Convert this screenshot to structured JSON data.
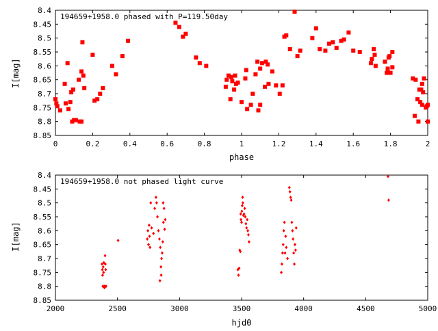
{
  "chart_data": [
    {
      "type": "scatter",
      "title": "194659+1958.0 phased with P=119.50day",
      "xlabel": "phase",
      "ylabel": "I[mag]",
      "xlim": [
        0,
        2
      ],
      "ylim": [
        8.4,
        8.85
      ],
      "y_inverted": true,
      "grid": false,
      "marker_color": "#ff0000",
      "marker": "filled-square",
      "x_ticks": [
        {
          "value": 0,
          "label": "0"
        },
        {
          "value": 0.2,
          "label": "0.2"
        },
        {
          "value": 0.4,
          "label": "0.4"
        },
        {
          "value": 0.6,
          "label": "0.6"
        },
        {
          "value": 0.8,
          "label": "0.8"
        },
        {
          "value": 1.0,
          "label": "1"
        },
        {
          "value": 1.2,
          "label": "1.2"
        },
        {
          "value": 1.4,
          "label": "1.4"
        },
        {
          "value": 1.6,
          "label": "1.6"
        },
        {
          "value": 1.8,
          "label": "1.8"
        },
        {
          "value": 2.0,
          "label": "2"
        }
      ],
      "y_ticks": [
        {
          "value": 8.4,
          "label": "8.4"
        },
        {
          "value": 8.45,
          "label": "8.45"
        },
        {
          "value": 8.5,
          "label": "8.5"
        },
        {
          "value": 8.55,
          "label": "8.55"
        },
        {
          "value": 8.6,
          "label": "8.6"
        },
        {
          "value": 8.65,
          "label": "8.65"
        },
        {
          "value": 8.7,
          "label": "8.7"
        },
        {
          "value": 8.75,
          "label": "8.75"
        },
        {
          "value": 8.8,
          "label": "8.8"
        },
        {
          "value": 8.85,
          "label": "8.85"
        }
      ],
      "points": [
        [
          0.0,
          8.72
        ],
        [
          0.005,
          8.735
        ],
        [
          0.01,
          8.745
        ],
        [
          0.025,
          8.76
        ],
        [
          0.05,
          8.665
        ],
        [
          0.055,
          8.735
        ],
        [
          0.065,
          8.59
        ],
        [
          0.07,
          8.755
        ],
        [
          0.08,
          8.73
        ],
        [
          0.085,
          8.695
        ],
        [
          0.09,
          8.8
        ],
        [
          0.095,
          8.685
        ],
        [
          0.1,
          8.795
        ],
        [
          0.11,
          8.795
        ],
        [
          0.125,
          8.65
        ],
        [
          0.13,
          8.8
        ],
        [
          0.14,
          8.8
        ],
        [
          0.14,
          8.62
        ],
        [
          0.145,
          8.515
        ],
        [
          0.15,
          8.635
        ],
        [
          0.155,
          8.68
        ],
        [
          0.2,
          8.56
        ],
        [
          0.21,
          8.725
        ],
        [
          0.225,
          8.72
        ],
        [
          0.24,
          8.7
        ],
        [
          0.255,
          8.68
        ],
        [
          0.305,
          8.6
        ],
        [
          0.325,
          8.63
        ],
        [
          0.36,
          8.565
        ],
        [
          0.39,
          8.51
        ],
        [
          0.645,
          8.445
        ],
        [
          0.665,
          8.46
        ],
        [
          0.685,
          8.495
        ],
        [
          0.7,
          8.485
        ],
        [
          0.755,
          8.57
        ],
        [
          0.775,
          8.59
        ],
        [
          0.81,
          8.6
        ],
        [
          0.915,
          8.675
        ],
        [
          0.92,
          8.65
        ],
        [
          0.93,
          8.635
        ],
        [
          0.94,
          8.72
        ],
        [
          0.945,
          8.64
        ],
        [
          0.95,
          8.655
        ],
        [
          0.96,
          8.685
        ],
        [
          0.965,
          8.635
        ],
        [
          0.97,
          8.665
        ],
        [
          0.98,
          8.66
        ],
        [
          1.0,
          8.73
        ],
        [
          1.02,
          8.645
        ],
        [
          1.025,
          8.615
        ],
        [
          1.03,
          8.755
        ],
        [
          1.05,
          8.74
        ],
        [
          1.06,
          8.7
        ],
        [
          1.075,
          8.63
        ],
        [
          1.085,
          8.585
        ],
        [
          1.09,
          8.76
        ],
        [
          1.1,
          8.74
        ],
        [
          1.1,
          8.61
        ],
        [
          1.11,
          8.59
        ],
        [
          1.125,
          8.675
        ],
        [
          1.13,
          8.585
        ],
        [
          1.14,
          8.595
        ],
        [
          1.145,
          8.665
        ],
        [
          1.165,
          8.62
        ],
        [
          1.185,
          8.67
        ],
        [
          1.205,
          8.7
        ],
        [
          1.22,
          8.67
        ],
        [
          1.23,
          8.495
        ],
        [
          1.24,
          8.49
        ],
        [
          1.26,
          8.54
        ],
        [
          1.285,
          8.405
        ],
        [
          1.3,
          8.565
        ],
        [
          1.315,
          8.545
        ],
        [
          1.38,
          8.5
        ],
        [
          1.4,
          8.465
        ],
        [
          1.42,
          8.54
        ],
        [
          1.45,
          8.545
        ],
        [
          1.47,
          8.52
        ],
        [
          1.49,
          8.515
        ],
        [
          1.51,
          8.535
        ],
        [
          1.535,
          8.51
        ],
        [
          1.55,
          8.505
        ],
        [
          1.575,
          8.48
        ],
        [
          1.6,
          8.545
        ],
        [
          1.635,
          8.55
        ],
        [
          1.695,
          8.59
        ],
        [
          1.7,
          8.575
        ],
        [
          1.71,
          8.54
        ],
        [
          1.715,
          8.56
        ],
        [
          1.72,
          8.6
        ],
        [
          1.77,
          8.585
        ],
        [
          1.78,
          8.625
        ],
        [
          1.785,
          8.61
        ],
        [
          1.79,
          8.57
        ],
        [
          1.795,
          8.565
        ],
        [
          1.8,
          8.625
        ],
        [
          1.81,
          8.605
        ],
        [
          1.81,
          8.55
        ],
        [
          1.92,
          8.645
        ],
        [
          1.93,
          8.78
        ],
        [
          1.935,
          8.65
        ],
        [
          1.945,
          8.72
        ],
        [
          1.95,
          8.8
        ],
        [
          1.955,
          8.685
        ],
        [
          1.96,
          8.73
        ],
        [
          1.965,
          8.685
        ],
        [
          1.97,
          8.665
        ],
        [
          1.97,
          8.74
        ],
        [
          1.975,
          8.695
        ],
        [
          1.98,
          8.645
        ],
        [
          1.99,
          8.75
        ],
        [
          1.995,
          8.745
        ],
        [
          2.0,
          8.74
        ],
        [
          2.0,
          8.8
        ]
      ]
    },
    {
      "type": "scatter",
      "title": "194659+1958.0 not phased light curve",
      "xlabel": "hjd0",
      "ylabel": "I[mag]",
      "xlim": [
        2000,
        5000
      ],
      "ylim": [
        8.4,
        8.85
      ],
      "y_inverted": true,
      "grid": false,
      "marker_color": "#ff0000",
      "marker": "small-diamond",
      "x_ticks": [
        {
          "value": 2000,
          "label": "2000"
        },
        {
          "value": 2500,
          "label": "2500"
        },
        {
          "value": 3000,
          "label": "3000"
        },
        {
          "value": 3500,
          "label": "3500"
        },
        {
          "value": 4000,
          "label": "4000"
        },
        {
          "value": 4500,
          "label": "4500"
        },
        {
          "value": 5000,
          "label": "5000"
        }
      ],
      "y_ticks": [
        {
          "value": 8.4,
          "label": "8.4"
        },
        {
          "value": 8.45,
          "label": "8.45"
        },
        {
          "value": 8.5,
          "label": "8.5"
        },
        {
          "value": 8.55,
          "label": "8.55"
        },
        {
          "value": 8.6,
          "label": "8.6"
        },
        {
          "value": 8.65,
          "label": "8.65"
        },
        {
          "value": 8.7,
          "label": "8.7"
        },
        {
          "value": 8.75,
          "label": "8.75"
        },
        {
          "value": 8.8,
          "label": "8.8"
        },
        {
          "value": 8.85,
          "label": "8.85"
        }
      ],
      "points": [
        [
          2375,
          8.72
        ],
        [
          2378,
          8.74
        ],
        [
          2380,
          8.76
        ],
        [
          2382,
          8.8
        ],
        [
          2385,
          8.73
        ],
        [
          2388,
          8.75
        ],
        [
          2390,
          8.715
        ],
        [
          2392,
          8.8
        ],
        [
          2395,
          8.805
        ],
        [
          2398,
          8.8
        ],
        [
          2400,
          8.69
        ],
        [
          2402,
          8.72
        ],
        [
          2405,
          8.74
        ],
        [
          2408,
          8.8
        ],
        [
          2505,
          8.635
        ],
        [
          2740,
          8.63
        ],
        [
          2745,
          8.6
        ],
        [
          2750,
          8.65
        ],
        [
          2755,
          8.58
        ],
        [
          2758,
          8.62
        ],
        [
          2762,
          8.66
        ],
        [
          2768,
          8.5
        ],
        [
          2775,
          8.59
        ],
        [
          2790,
          8.61
        ],
        [
          2800,
          8.52
        ],
        [
          2810,
          8.48
        ],
        [
          2815,
          8.5
        ],
        [
          2822,
          8.55
        ],
        [
          2830,
          8.6
        ],
        [
          2838,
          8.63
        ],
        [
          2842,
          8.78
        ],
        [
          2845,
          8.66
        ],
        [
          2850,
          8.73
        ],
        [
          2852,
          8.76
        ],
        [
          2855,
          8.7
        ],
        [
          2860,
          8.68
        ],
        [
          2865,
          8.64
        ],
        [
          2868,
          8.5
        ],
        [
          2870,
          8.57
        ],
        [
          2875,
          8.52
        ],
        [
          2880,
          8.595
        ],
        [
          2885,
          8.56
        ],
        [
          3470,
          8.74
        ],
        [
          3475,
          8.76
        ],
        [
          3480,
          8.735
        ],
        [
          3485,
          8.67
        ],
        [
          3490,
          8.675
        ],
        [
          3493,
          8.54
        ],
        [
          3495,
          8.56
        ],
        [
          3500,
          8.57
        ],
        [
          3502,
          8.53
        ],
        [
          3505,
          8.51
        ],
        [
          3508,
          8.48
        ],
        [
          3510,
          8.5
        ],
        [
          3515,
          8.545
        ],
        [
          3520,
          8.54
        ],
        [
          3525,
          8.52
        ],
        [
          3530,
          8.55
        ],
        [
          3535,
          8.575
        ],
        [
          3540,
          8.59
        ],
        [
          3545,
          8.56
        ],
        [
          3550,
          8.6
        ],
        [
          3555,
          8.615
        ],
        [
          3560,
          8.64
        ],
        [
          3820,
          8.75
        ],
        [
          3825,
          8.72
        ],
        [
          3830,
          8.68
        ],
        [
          3835,
          8.65
        ],
        [
          3840,
          8.6
        ],
        [
          3845,
          8.57
        ],
        [
          3850,
          8.68
        ],
        [
          3855,
          8.62
        ],
        [
          3860,
          8.66
        ],
        [
          3870,
          8.7
        ],
        [
          3885,
          8.445
        ],
        [
          3890,
          8.46
        ],
        [
          3895,
          8.48
        ],
        [
          3900,
          8.49
        ],
        [
          3905,
          8.57
        ],
        [
          3910,
          8.6
        ],
        [
          3915,
          8.63
        ],
        [
          3920,
          8.68
        ],
        [
          3925,
          8.72
        ],
        [
          3930,
          8.65
        ],
        [
          3935,
          8.67
        ],
        [
          3940,
          8.59
        ],
        [
          4680,
          8.405
        ],
        [
          4685,
          8.49
        ]
      ]
    }
  ]
}
